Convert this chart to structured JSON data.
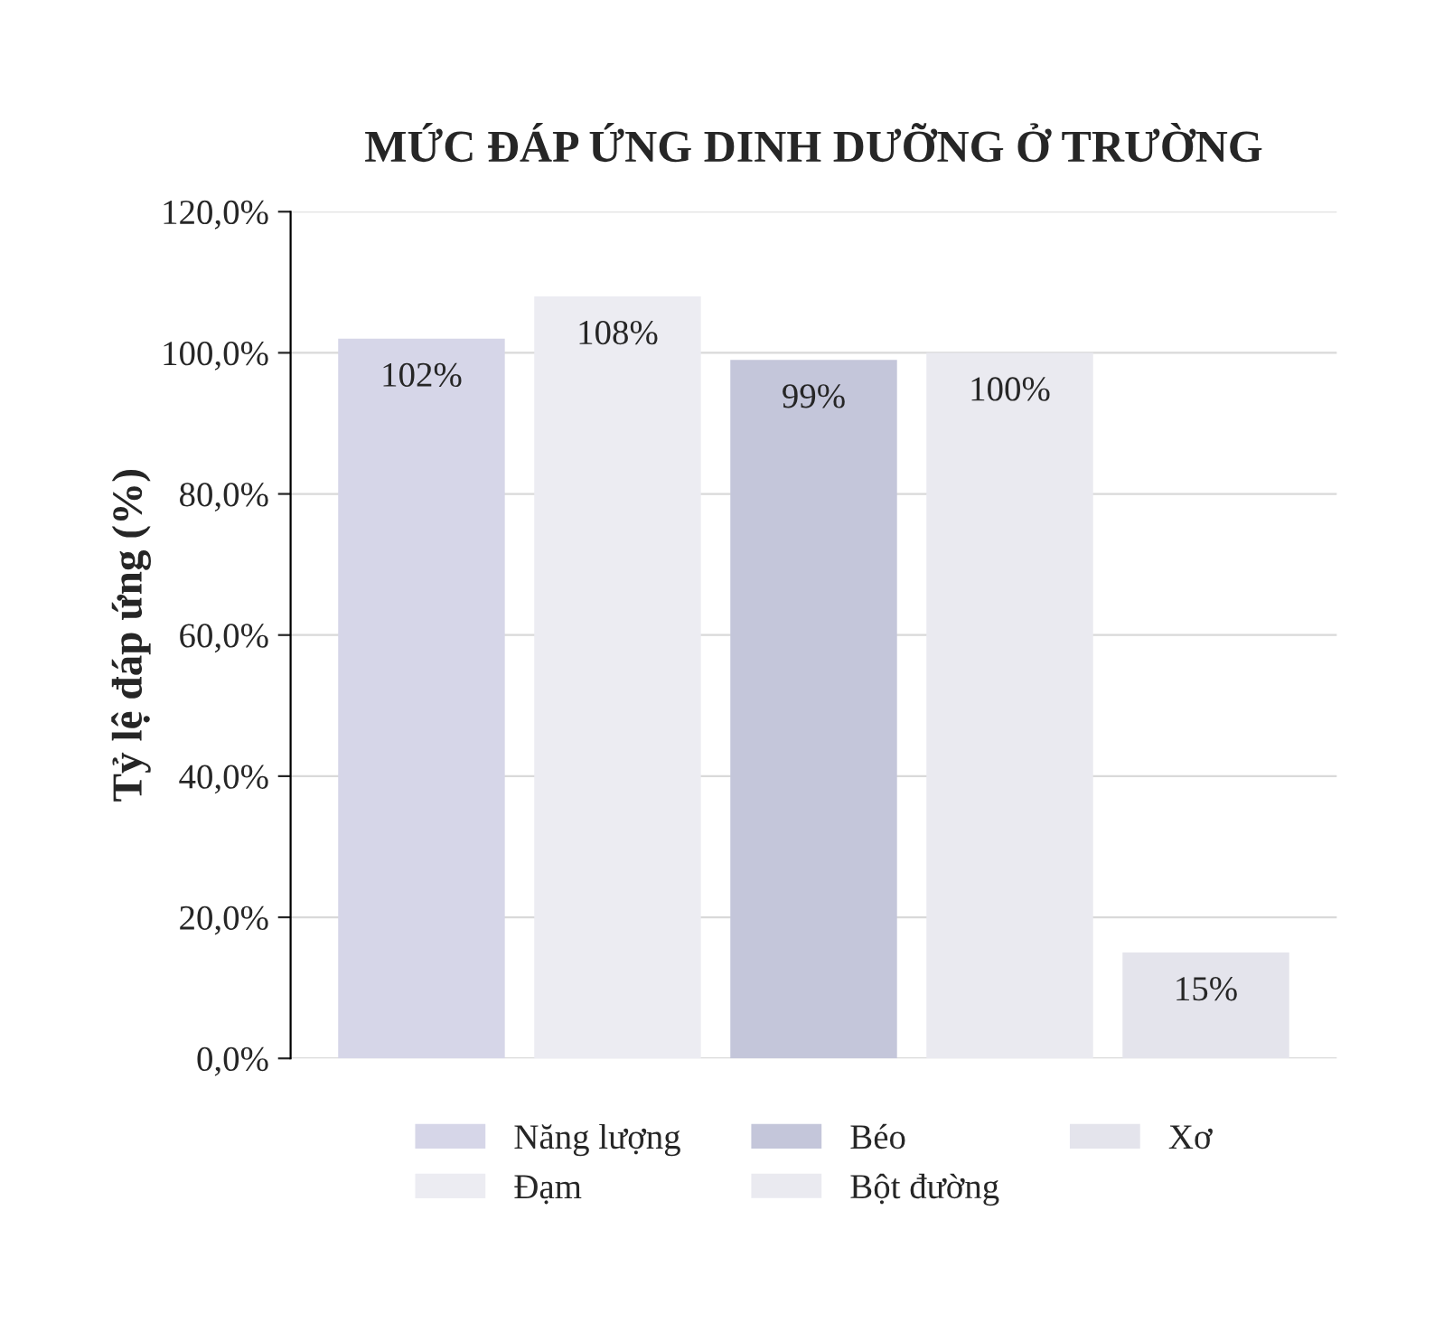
{
  "chart_data": {
    "type": "bar",
    "title": "MỨC ĐÁP ỨNG DINH DƯỠNG Ở TRƯỜNG",
    "ylabel": "Tỷ lệ đáp ứng (%)",
    "categories": [
      null
    ],
    "series": [
      {
        "name": "Năng lượng",
        "color": "#d6d6e8",
        "values": [
          102
        ],
        "value_labels": [
          "102%"
        ]
      },
      {
        "name": "Đạm",
        "color": "#ececf2",
        "values": [
          108
        ],
        "value_labels": [
          "108%"
        ]
      },
      {
        "name": "Béo",
        "color": "#c4c6da",
        "values": [
          99
        ],
        "value_labels": [
          "99%"
        ]
      },
      {
        "name": "Bột đường",
        "color": "#eaeaf0",
        "values": [
          100
        ],
        "value_labels": [
          "100%"
        ]
      },
      {
        "name": "Xơ",
        "color": "#e4e4ec",
        "values": [
          15
        ],
        "value_labels": [
          "15%"
        ]
      }
    ],
    "ylim": [
      0,
      120
    ],
    "yticks": [
      {
        "value": 0,
        "label": "0,0%"
      },
      {
        "value": 20,
        "label": "20,0%"
      },
      {
        "value": 40,
        "label": "40,0%"
      },
      {
        "value": 60,
        "label": "60,0%"
      },
      {
        "value": 80,
        "label": "80,0%"
      },
      {
        "value": 100,
        "label": "100,0%"
      },
      {
        "value": 120,
        "label": "120,0%"
      }
    ],
    "grid": "y",
    "legend": "bottom",
    "tick_labels": "y"
  }
}
